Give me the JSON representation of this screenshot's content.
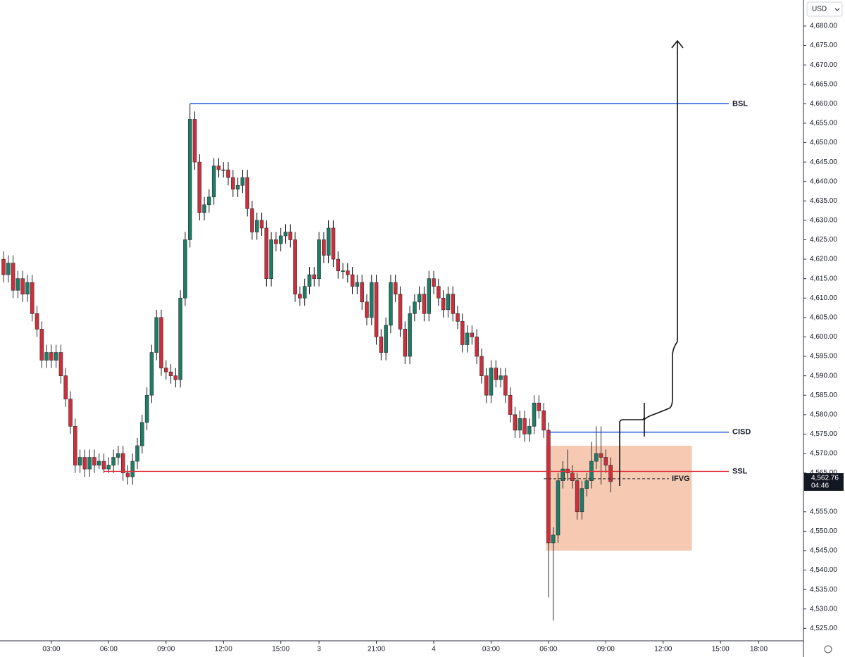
{
  "chart_data": {
    "type": "candlestick",
    "currency": "USD",
    "up_color": "#1e7d67",
    "down_color": "#cf2f3d",
    "open": [
      4620,
      4616,
      4619,
      4612,
      4615,
      4611,
      4614,
      4606,
      4602,
      4594,
      4596,
      4594,
      4596,
      4590,
      4584,
      4577,
      4567,
      4569,
      4566,
      4569,
      4567,
      4568,
      4566,
      4567,
      4569,
      4570,
      4565,
      4564,
      4568,
      4572,
      4578,
      4585,
      4596,
      4605,
      4592,
      4591,
      4590,
      4589,
      4610,
      4625,
      4656,
      4645,
      4632,
      4634,
      4636,
      4644,
      4643,
      4643,
      4641,
      4638,
      4639,
      4641,
      4633,
      4627,
      4630,
      4628,
      4615,
      4625,
      4624,
      4626,
      4627,
      4625,
      4611,
      4610,
      4613,
      4616,
      4615,
      4625,
      4621,
      4628,
      4620,
      4617,
      4617,
      4616,
      4613,
      4614,
      4609,
      4605,
      4614,
      4600,
      4596,
      4603,
      4614,
      4611,
      4602,
      4595,
      4606,
      4609,
      4611,
      4606,
      4615,
      4613,
      4610,
      4607,
      4611,
      4606,
      4604,
      4598,
      4601,
      4600,
      4595,
      4590,
      4585,
      4592,
      4589,
      4590,
      4585,
      4580,
      4576,
      4579,
      4575,
      4577,
      4583,
      4581,
      4576,
      4547,
      4549,
      4563,
      4566,
      4565,
      4563,
      4555,
      4561,
      4563,
      4568,
      4570,
      4569,
      4567
    ],
    "high": [
      4622,
      4621,
      4621,
      4617,
      4617,
      4616,
      4616,
      4608,
      4604,
      4598,
      4598,
      4598,
      4598,
      4592,
      4586,
      4579,
      4571,
      4571,
      4571,
      4571,
      4570,
      4570,
      4569,
      4571,
      4572,
      4572,
      4567,
      4570,
      4574,
      4580,
      4587,
      4598,
      4607,
      4607,
      4594,
      4593,
      4592,
      4612,
      4627,
      4660,
      4658,
      4647,
      4636,
      4638,
      4646,
      4646,
      4645,
      4645,
      4643,
      4641,
      4643,
      4643,
      4635,
      4632,
      4632,
      4630,
      4627,
      4627,
      4628,
      4629,
      4629,
      4627,
      4613,
      4615,
      4618,
      4618,
      4627,
      4627,
      4630,
      4630,
      4622,
      4619,
      4619,
      4618,
      4616,
      4616,
      4611,
      4616,
      4616,
      4602,
      4605,
      4616,
      4616,
      4613,
      4604,
      4608,
      4611,
      4613,
      4613,
      4617,
      4617,
      4615,
      4612,
      4613,
      4613,
      4608,
      4606,
      4603,
      4603,
      4602,
      4597,
      4592,
      4594,
      4594,
      4592,
      4592,
      4587,
      4582,
      4581,
      4581,
      4579,
      4585,
      4585,
      4583,
      4578,
      4551,
      4565,
      4568,
      4571,
      4567,
      4565,
      4563,
      4565,
      4573,
      4577,
      4577,
      4571,
      4569
    ],
    "low": [
      4614,
      4614,
      4610,
      4610,
      4609,
      4609,
      4604,
      4600,
      4592,
      4592,
      4592,
      4592,
      4588,
      4582,
      4575,
      4565,
      4565,
      4564,
      4564,
      4565,
      4566,
      4565,
      4565,
      4565,
      4567,
      4563,
      4562,
      4562,
      4566,
      4570,
      4576,
      4583,
      4594,
      4590,
      4589,
      4588,
      4587,
      4587,
      4608,
      4623,
      4643,
      4630,
      4630,
      4632,
      4634,
      4641,
      4641,
      4639,
      4636,
      4636,
      4637,
      4631,
      4625,
      4625,
      4626,
      4613,
      4613,
      4622,
      4622,
      4624,
      4623,
      4609,
      4608,
      4608,
      4611,
      4613,
      4613,
      4619,
      4619,
      4618,
      4615,
      4615,
      4614,
      4611,
      4611,
      4607,
      4603,
      4603,
      4598,
      4594,
      4594,
      4601,
      4609,
      4600,
      4593,
      4593,
      4604,
      4607,
      4604,
      4604,
      4611,
      4608,
      4605,
      4605,
      4604,
      4602,
      4596,
      4596,
      4598,
      4593,
      4588,
      4583,
      4583,
      4587,
      4587,
      4583,
      4578,
      4574,
      4574,
      4573,
      4573,
      4575,
      4579,
      4574,
      4533,
      4527,
      4547,
      4561,
      4563,
      4561,
      4553,
      4553,
      4559,
      4561,
      4566,
      4562,
      4565,
      4560
    ],
    "close": [
      4616,
      4619,
      4612,
      4615,
      4611,
      4614,
      4606,
      4602,
      4594,
      4596,
      4594,
      4596,
      4590,
      4584,
      4577,
      4567,
      4569,
      4566,
      4569,
      4567,
      4568,
      4566,
      4567,
      4569,
      4570,
      4565,
      4564,
      4568,
      4572,
      4578,
      4585,
      4596,
      4605,
      4592,
      4591,
      4590,
      4589,
      4610,
      4625,
      4656,
      4645,
      4632,
      4634,
      4636,
      4644,
      4643,
      4643,
      4641,
      4638,
      4639,
      4641,
      4633,
      4627,
      4630,
      4628,
      4615,
      4625,
      4624,
      4626,
      4627,
      4625,
      4611,
      4610,
      4613,
      4616,
      4615,
      4625,
      4621,
      4628,
      4620,
      4617,
      4617,
      4616,
      4613,
      4614,
      4609,
      4605,
      4614,
      4600,
      4596,
      4603,
      4614,
      4611,
      4602,
      4595,
      4606,
      4609,
      4611,
      4606,
      4615,
      4613,
      4610,
      4607,
      4611,
      4606,
      4604,
      4598,
      4601,
      4600,
      4595,
      4590,
      4585,
      4592,
      4589,
      4590,
      4585,
      4580,
      4576,
      4579,
      4575,
      4577,
      4583,
      4581,
      4576,
      4547,
      4549,
      4563,
      4566,
      4565,
      4563,
      4555,
      4561,
      4563,
      4568,
      4570,
      4569,
      4567,
      4562.76
    ],
    "xlim": [
      -0.74,
      167.2
    ],
    "xticks": [
      {
        "value": 10,
        "label": "03:00"
      },
      {
        "value": 22,
        "label": "06:00"
      },
      {
        "value": 34,
        "label": "09:00"
      },
      {
        "value": 46,
        "label": "12:00"
      },
      {
        "value": 58,
        "label": "15:00"
      },
      {
        "value": 66,
        "label": "3"
      },
      {
        "value": 78,
        "label": "21:00"
      },
      {
        "value": 90,
        "label": "4"
      },
      {
        "value": 102,
        "label": "03:00"
      },
      {
        "value": 114,
        "label": "06:00"
      },
      {
        "value": 126,
        "label": "09:00"
      },
      {
        "value": 138,
        "label": "12:00"
      },
      {
        "value": 150,
        "label": "15:00"
      },
      {
        "value": 158,
        "label": "18:00"
      }
    ],
    "ylim": [
      4521.8,
      4686.7
    ],
    "yticks": [
      {
        "value": 4525,
        "label": "4,525.00"
      },
      {
        "value": 4530,
        "label": "4,530.00"
      },
      {
        "value": 4535,
        "label": "4,535.00"
      },
      {
        "value": 4540,
        "label": "4,540.00"
      },
      {
        "value": 4545,
        "label": "4,545.00"
      },
      {
        "value": 4550,
        "label": "4,550.00"
      },
      {
        "value": 4555,
        "label": "4,555.00"
      },
      {
        "value": 4565,
        "label": "4,565.00"
      },
      {
        "value": 4570,
        "label": "4,570.00"
      },
      {
        "value": 4575,
        "label": "4,575.00"
      },
      {
        "value": 4580,
        "label": "4,580.00"
      },
      {
        "value": 4585,
        "label": "4,585.00"
      },
      {
        "value": 4590,
        "label": "4,590.00"
      },
      {
        "value": 4595,
        "label": "4,595.00"
      },
      {
        "value": 4600,
        "label": "4,600.00"
      },
      {
        "value": 4605,
        "label": "4,605.00"
      },
      {
        "value": 4610,
        "label": "4,610.00"
      },
      {
        "value": 4615,
        "label": "4,615.00"
      },
      {
        "value": 4620,
        "label": "4,620.00"
      },
      {
        "value": 4625,
        "label": "4,625.00"
      },
      {
        "value": 4630,
        "label": "4,630.00"
      },
      {
        "value": 4635,
        "label": "4,635.00"
      },
      {
        "value": 4640,
        "label": "4,640.00"
      },
      {
        "value": 4645,
        "label": "4,645.00"
      },
      {
        "value": 4650,
        "label": "4,650.00"
      },
      {
        "value": 4655,
        "label": "4,655.00"
      },
      {
        "value": 4660,
        "label": "4,660.00"
      },
      {
        "value": 4665,
        "label": "4,665.00"
      },
      {
        "value": 4670,
        "label": "4,670.00"
      },
      {
        "value": 4675,
        "label": "4,675.00"
      },
      {
        "value": 4680,
        "label": "4,680.00"
      }
    ],
    "levels": [
      {
        "label": "BSL",
        "value": 4660,
        "start": 39,
        "color": "#1848d6"
      },
      {
        "label": "CISD",
        "value": 4575.5,
        "start": 114,
        "color": "#1848d6"
      },
      {
        "label": "SSL",
        "value": 4565.4,
        "start": 21,
        "color": "#e0303a"
      },
      {
        "label": "IFVG",
        "value": 4563.5,
        "start": 113,
        "color": "#222222",
        "style": "dashed"
      }
    ],
    "zone": {
      "low": 4545,
      "high": 4572,
      "start": 113.5,
      "end": 144,
      "color": "#f6c9b2"
    },
    "last_price": {
      "value": 4562.76,
      "label": "4,562.76"
    },
    "countdown": "04:46"
  }
}
